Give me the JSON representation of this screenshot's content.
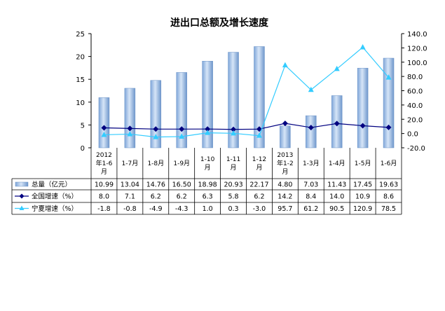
{
  "chart_data": {
    "type": "bar",
    "title": "进出口总额及增长速度",
    "categories": [
      [
        "2012",
        "年1-6",
        "月"
      ],
      [
        "1-7月"
      ],
      [
        "1-8月"
      ],
      [
        "1-9月"
      ],
      [
        "1-10",
        "月"
      ],
      [
        "1-11",
        "月"
      ],
      [
        "1-12",
        "月"
      ],
      [
        "2013",
        "年1-2",
        "月"
      ],
      [
        "1-3月"
      ],
      [
        "1-4月"
      ],
      [
        "1-5月"
      ],
      [
        "1-6月"
      ]
    ],
    "left_axis": {
      "ylim": [
        0,
        25
      ],
      "ticks": [
        "0",
        "5",
        "10",
        "15",
        "20",
        "25"
      ]
    },
    "right_axis": {
      "ylim": [
        -20,
        140
      ],
      "ticks": [
        "-20.0",
        "0.0",
        "20.0",
        "40.0",
        "60.0",
        "80.0",
        "100.0",
        "120.0",
        "140.0"
      ]
    },
    "grid": false,
    "series": [
      {
        "name": "总量（亿元）",
        "type": "bar",
        "axis": "left",
        "color": "#8db4e2",
        "values": [
          10.99,
          13.04,
          14.76,
          16.5,
          18.98,
          20.93,
          22.17,
          4.8,
          7.03,
          11.43,
          17.45,
          19.63
        ],
        "labels": [
          "10.99",
          "13.04",
          "14.76",
          "16.50",
          "18.98",
          "20.93",
          "22.17",
          "4.80",
          "7.03",
          "11.43",
          "17.45",
          "19.63"
        ]
      },
      {
        "name": "全国增速（%）",
        "type": "line",
        "axis": "right",
        "color": "#000080",
        "marker": "diamond",
        "values": [
          8.0,
          7.1,
          6.2,
          6.2,
          6.3,
          5.8,
          6.2,
          14.2,
          8.4,
          14.0,
          10.9,
          8.6
        ],
        "labels": [
          "8.0",
          "7.1",
          "6.2",
          "6.2",
          "6.3",
          "5.8",
          "6.2",
          "14.2",
          "8.4",
          "14.0",
          "10.9",
          "8.6"
        ]
      },
      {
        "name": "宁夏增速（%）",
        "type": "line",
        "axis": "right",
        "color": "#33ccff",
        "marker": "triangle",
        "values": [
          -1.8,
          -0.8,
          -4.9,
          -4.3,
          1.0,
          0.3,
          -3.0,
          95.7,
          61.2,
          90.5,
          120.9,
          78.5
        ],
        "labels": [
          "-1.8",
          "-0.8",
          "-4.9",
          "-4.3",
          "1.0",
          "0.3",
          "-3.0",
          "95.7",
          "61.2",
          "90.5",
          "120.9",
          "78.5"
        ]
      }
    ]
  }
}
